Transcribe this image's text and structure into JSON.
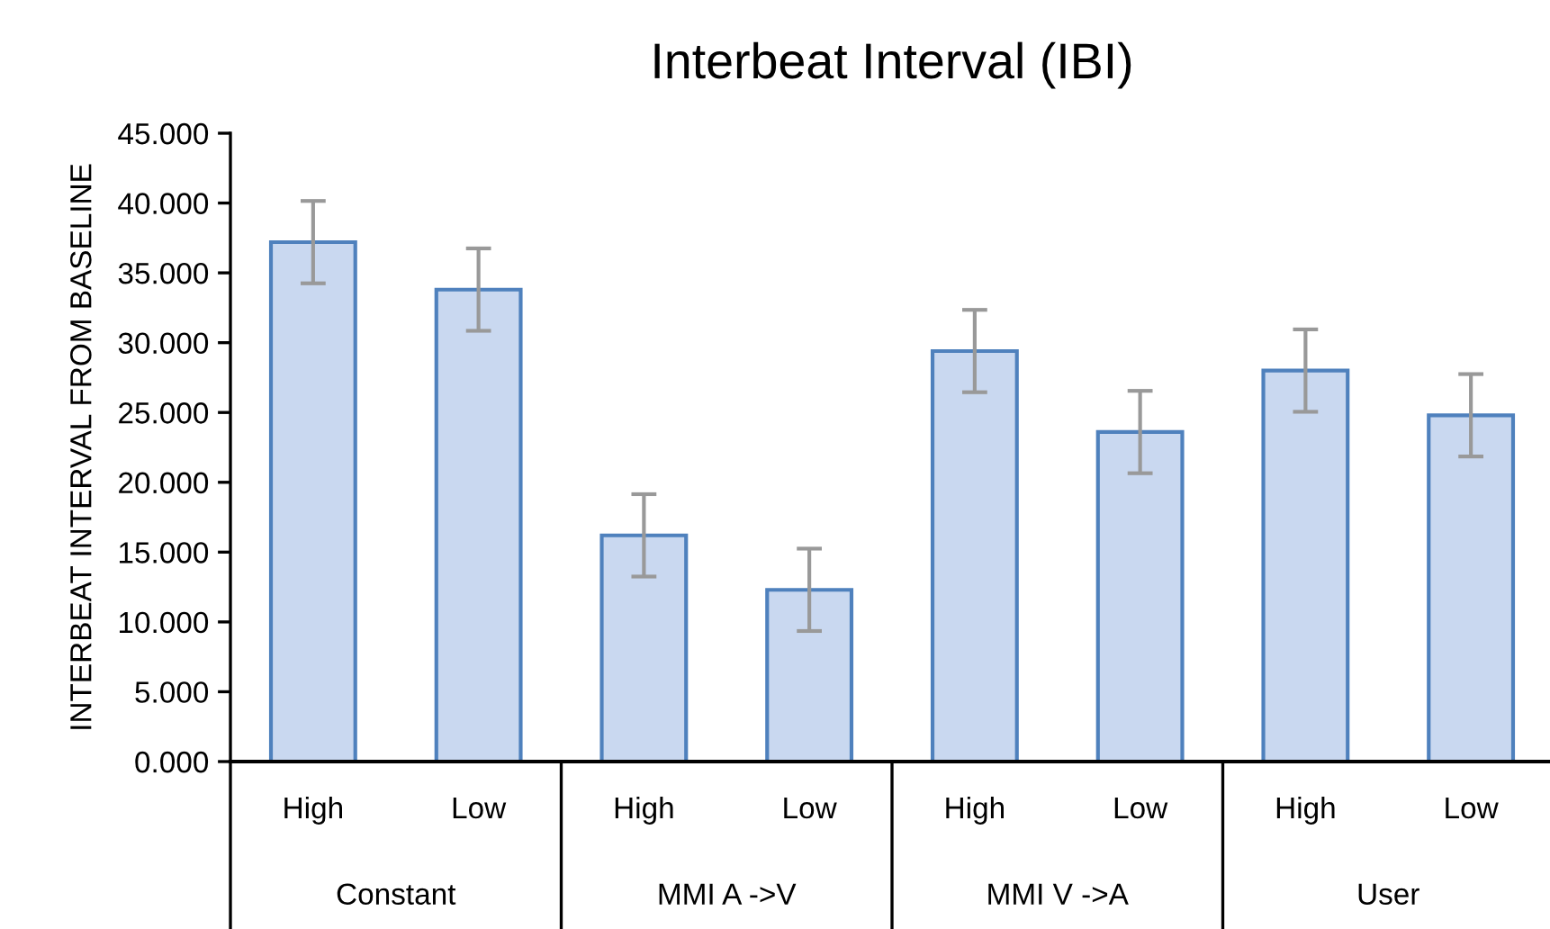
{
  "chart_data": {
    "type": "bar",
    "title": "Interbeat Interval (IBI)",
    "ylabel": "INTERBEAT INTERVAL FROM BASELINE",
    "categories": [
      "High",
      "Low",
      "High",
      "Low",
      "High",
      "Low",
      "High",
      "Low"
    ],
    "values": [
      37.2,
      33.8,
      16.2,
      12.3,
      29.4,
      23.6,
      28.0,
      24.8
    ],
    "errors": [
      2.95,
      2.95,
      2.95,
      2.95,
      2.95,
      2.95,
      2.95,
      2.95
    ],
    "color": "#c9d8f0",
    "annotations": [
      "Constant",
      "MMI A ->V",
      "MMI V ->A",
      "User"
    ],
    "ylim": [
      0,
      45
    ],
    "yticks": [
      {
        "value": 0,
        "label": "0.000"
      },
      {
        "value": 5,
        "label": "5.000"
      },
      {
        "value": 10,
        "label": "10.000"
      },
      {
        "value": 15,
        "label": "15.000"
      },
      {
        "value": 20,
        "label": "20.000"
      },
      {
        "value": 25,
        "label": "25.000"
      },
      {
        "value": 30,
        "label": "30.000"
      },
      {
        "value": 35,
        "label": "35.000"
      },
      {
        "value": 40,
        "label": "40.000"
      },
      {
        "value": 45,
        "label": "45.000"
      }
    ],
    "grid": false,
    "legend": false
  }
}
